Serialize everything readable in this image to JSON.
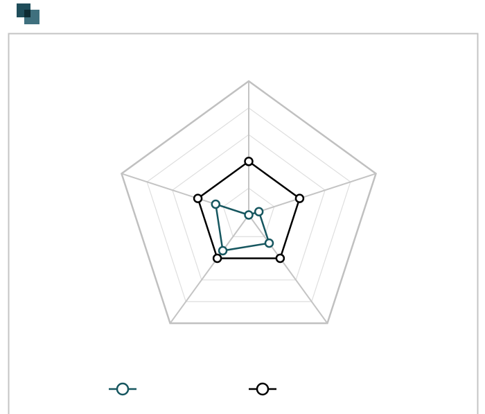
{
  "chart_data": {
    "type": "radar",
    "categories": [
      null,
      null,
      null,
      null,
      null
    ],
    "rlim": [
      0,
      5
    ],
    "rticks": [
      1,
      2,
      3,
      4,
      5
    ],
    "grid": true,
    "series": [
      {
        "color": "#16565f",
        "values": [
          0,
          0.4,
          1.3,
          1.65,
          1.3
        ]
      },
      {
        "color": "#000000",
        "values": [
          2,
          2,
          2,
          2,
          2
        ]
      }
    ]
  }
}
